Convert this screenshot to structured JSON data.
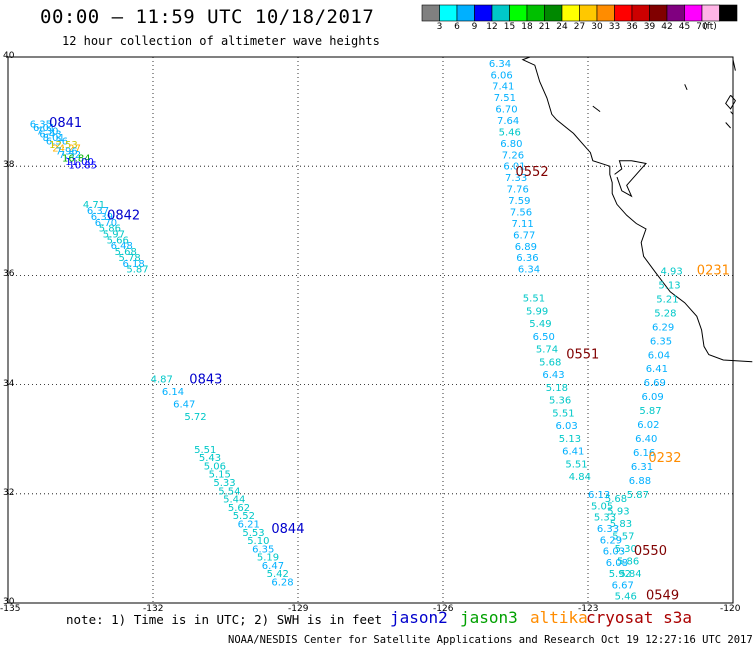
{
  "header": {
    "title": "00:00 – 11:59 UTC 10/18/2017",
    "subtitle": "12 hour collection of altimeter wave heights"
  },
  "colorscale": {
    "colors": [
      "#808080",
      "#00ffff",
      "#00b0ff",
      "#0000ff",
      "#00c8c8",
      "#00ff00",
      "#00c000",
      "#008800",
      "#ffff00",
      "#ffc800",
      "#ff8c00",
      "#ff0000",
      "#cc0000",
      "#800000",
      "#800080",
      "#ff00ff",
      "#ffb4e6",
      "#000000"
    ],
    "labels": [
      "3",
      "6",
      "9",
      "12",
      "15",
      "18",
      "21",
      "24",
      "27",
      "30",
      "33",
      "36",
      "39",
      "42",
      "45",
      "70",
      "(ft)"
    ]
  },
  "map": {
    "lat_labels": [
      "40",
      "38",
      "36",
      "34",
      "32",
      "30"
    ],
    "lon_labels": [
      "-135",
      "-132",
      "-129",
      "-126",
      "-123",
      "-120"
    ]
  },
  "tracks": [
    {
      "id": "0841",
      "color": "#0000cc",
      "label_lonlat": [
        -134.15,
        38.72
      ],
      "start": [
        -134.55,
        38.71
      ],
      "end": [
        -133.75,
        37.96
      ],
      "points": [
        [
          "6.35",
          "#00b0ff"
        ],
        [
          "6.01",
          "#00b0ff"
        ],
        [
          "7.30",
          "#00b0ff"
        ],
        [
          "6.43",
          "#00b0ff"
        ],
        [
          "8.01",
          "#00b0ff"
        ],
        [
          "6.36",
          "#00b0ff"
        ],
        [
          "12.53",
          "#c8c800"
        ],
        [
          "24.27",
          "#ffb000"
        ],
        [
          "7.96",
          "#00b0ff"
        ],
        [
          "7.52",
          "#00b0ff"
        ],
        [
          "16.84",
          "#00b000"
        ],
        [
          "11.00",
          "#0000ff"
        ],
        [
          "10.85",
          "#0000ff"
        ]
      ]
    },
    {
      "id": "0842",
      "color": "#0000cc",
      "label_lonlat": [
        -132.95,
        37.02
      ],
      "start": [
        -133.45,
        37.23
      ],
      "end": [
        -132.55,
        36.05
      ],
      "points": [
        [
          "4.71",
          "#00c8c8"
        ],
        [
          "6.37",
          "#00b0ff"
        ],
        [
          "6.39",
          "#00b0ff"
        ],
        [
          "6.70",
          "#00b0ff"
        ],
        [
          "5.86",
          "#00c8c8"
        ],
        [
          "5.97",
          "#00c8c8"
        ],
        [
          "5.66",
          "#00c8c8"
        ],
        [
          "6.48",
          "#00b0ff"
        ],
        [
          "5.68",
          "#00c8c8"
        ],
        [
          "5.78",
          "#00c8c8"
        ],
        [
          "6.18",
          "#00b0ff"
        ],
        [
          "5.87",
          "#00c8c8"
        ]
      ]
    },
    {
      "id": "0843",
      "color": "#0000cc",
      "label_lonlat": [
        -131.25,
        34.02
      ],
      "start": [
        -132.05,
        34.04
      ],
      "end": [
        -131.35,
        33.35
      ],
      "points": [
        [
          "4.87",
          "#00c8c8"
        ],
        [
          "6.14",
          "#00b0ff"
        ],
        [
          "6.47",
          "#00b0ff"
        ],
        [
          "5.72",
          "#00c8c8"
        ]
      ]
    },
    {
      "id": "0844",
      "color": "#0000cc",
      "label_lonlat": [
        -129.55,
        31.28
      ],
      "start": [
        -131.15,
        32.75
      ],
      "end": [
        -129.55,
        30.32
      ],
      "points": [
        [
          "5.51",
          "#00c8c8"
        ],
        [
          "5.43",
          "#00c8c8"
        ],
        [
          "5.06",
          "#00c8c8"
        ],
        [
          "5.15",
          "#00c8c8"
        ],
        [
          "5.33",
          "#00c8c8"
        ],
        [
          "5.54",
          "#00c8c8"
        ],
        [
          "5.44",
          "#00c8c8"
        ],
        [
          "5.62",
          "#00c8c8"
        ],
        [
          "5.52",
          "#00c8c8"
        ],
        [
          "6.21",
          "#00b0ff"
        ],
        [
          "5.53",
          "#00c8c8"
        ],
        [
          "5.10",
          "#00c8c8"
        ],
        [
          "6.35",
          "#00b0ff"
        ],
        [
          "5.19",
          "#00c8c8"
        ],
        [
          "6.47",
          "#00b0ff"
        ],
        [
          "5.42",
          "#00c8c8"
        ],
        [
          "6.28",
          "#00b0ff"
        ]
      ]
    },
    {
      "id": "0552",
      "color": "#800000",
      "label_lonlat": [
        -124.5,
        37.82
      ],
      "start": [
        -125.05,
        39.82
      ],
      "end": [
        -124.45,
        36.05
      ],
      "points": [
        [
          "6.34",
          "#00b0ff"
        ],
        [
          "6.06",
          "#00b0ff"
        ],
        [
          "7.41",
          "#00b0ff"
        ],
        [
          "7.51",
          "#00b0ff"
        ],
        [
          "6.70",
          "#00b0ff"
        ],
        [
          "7.64",
          "#00b0ff"
        ],
        [
          "5.46",
          "#00c8c8"
        ],
        [
          "6.80",
          "#00b0ff"
        ],
        [
          "7.26",
          "#00b0ff"
        ],
        [
          "6.01",
          "#00b0ff"
        ],
        [
          "7.33",
          "#00b0ff"
        ],
        [
          "7.76",
          "#00b0ff"
        ],
        [
          "7.59",
          "#00b0ff"
        ],
        [
          "7.56",
          "#00b0ff"
        ],
        [
          "7.11",
          "#00b0ff"
        ],
        [
          "6.77",
          "#00b0ff"
        ],
        [
          "6.89",
          "#00b0ff"
        ],
        [
          "6.36",
          "#00b0ff"
        ],
        [
          "6.34",
          "#00b0ff"
        ]
      ]
    },
    {
      "id": "0551",
      "color": "#800000",
      "label_lonlat": [
        -123.45,
        34.48
      ],
      "start": [
        -124.35,
        35.52
      ],
      "end": [
        -123.4,
        32.25
      ],
      "points": [
        [
          "5.51",
          "#00c8c8"
        ],
        [
          "5.99",
          "#00c8c8"
        ],
        [
          "5.49",
          "#00c8c8"
        ],
        [
          "6.50",
          "#00b0ff"
        ],
        [
          "5.74",
          "#00c8c8"
        ],
        [
          "5.68",
          "#00c8c8"
        ],
        [
          "6.43",
          "#00b0ff"
        ],
        [
          "5.18",
          "#00c8c8"
        ],
        [
          "5.36",
          "#00c8c8"
        ],
        [
          "5.51",
          "#00c8c8"
        ],
        [
          "6.03",
          "#00b0ff"
        ],
        [
          "5.13",
          "#00c8c8"
        ],
        [
          "6.41",
          "#00b0ff"
        ],
        [
          "5.51",
          "#00c8c8"
        ],
        [
          "4.84",
          "#00c8c8"
        ]
      ]
    },
    {
      "id": "0231",
      "color": "#ff8c00",
      "label_lonlat": [
        -120.75,
        36.02
      ],
      "start": [
        -121.5,
        36.02
      ],
      "end": [
        -122.2,
        31.92
      ],
      "points": [
        [
          "4.93",
          "#00c8c8"
        ],
        [
          "5.13",
          "#00c8c8"
        ],
        [
          "5.21",
          "#00c8c8"
        ],
        [
          "5.28",
          "#00c8c8"
        ],
        [
          "6.29",
          "#00b0ff"
        ],
        [
          "6.35",
          "#00b0ff"
        ],
        [
          "6.04",
          "#00b0ff"
        ],
        [
          "6.41",
          "#00b0ff"
        ],
        [
          "6.69",
          "#00b0ff"
        ],
        [
          "6.09",
          "#00b0ff"
        ],
        [
          "5.87",
          "#00c8c8"
        ],
        [
          "6.02",
          "#00b0ff"
        ],
        [
          "6.40",
          "#00b0ff"
        ],
        [
          "6.16",
          "#00b0ff"
        ],
        [
          "6.31",
          "#00b0ff"
        ],
        [
          "6.88",
          "#00b0ff"
        ],
        [
          "5.87",
          "#00c8c8"
        ]
      ]
    },
    {
      "id": "0232",
      "color": "#ff8c00",
      "label_lonlat": [
        -121.75,
        32.58
      ],
      "start": null,
      "end": null,
      "points": []
    },
    {
      "id": "0550",
      "color": "#800000",
      "label_lonlat": [
        -122.05,
        30.88
      ],
      "start": [
        -122.65,
        31.85
      ],
      "end": [
        -122.35,
        30.48
      ],
      "points": [
        [
          "5.68",
          "#00c8c8"
        ],
        [
          "5.93",
          "#00c8c8"
        ],
        [
          "5.83",
          "#00c8c8"
        ],
        [
          "5.57",
          "#00c8c8"
        ],
        [
          "5.30",
          "#00c8c8"
        ],
        [
          "5.86",
          "#00c8c8"
        ],
        [
          "5.84",
          "#00c8c8"
        ]
      ]
    },
    {
      "id": "0549",
      "color": "#800000",
      "label_lonlat": [
        -121.8,
        30.06
      ],
      "start": [
        -123.0,
        31.92
      ],
      "end": [
        -122.45,
        30.06
      ],
      "points": [
        [
          "6.13",
          "#00b0ff"
        ],
        [
          "5.05",
          "#00c8c8"
        ],
        [
          "5.33",
          "#00c8c8"
        ],
        [
          "6.33",
          "#00b0ff"
        ],
        [
          "6.29",
          "#00b0ff"
        ],
        [
          "6.03",
          "#00b0ff"
        ],
        [
          "6.08",
          "#00b0ff"
        ],
        [
          "5.92",
          "#00c8c8"
        ],
        [
          "6.67",
          "#00b0ff"
        ],
        [
          "5.46",
          "#00c8c8"
        ]
      ]
    }
  ],
  "footer": {
    "note": "note: 1) Time is in UTC; 2) SWH is in feet",
    "satellites": [
      {
        "name": "jason2",
        "color": "#0000cc"
      },
      {
        "name": "jason3",
        "color": "#00a000"
      },
      {
        "name": "altika",
        "color": "#ff8c00"
      },
      {
        "name": "cryosat s3a",
        "color": "#aa0000"
      }
    ],
    "credit": "NOAA/NESDIS Center for Satellite Applications and Research   Oct 19 12:27:16 UTC 2017"
  }
}
